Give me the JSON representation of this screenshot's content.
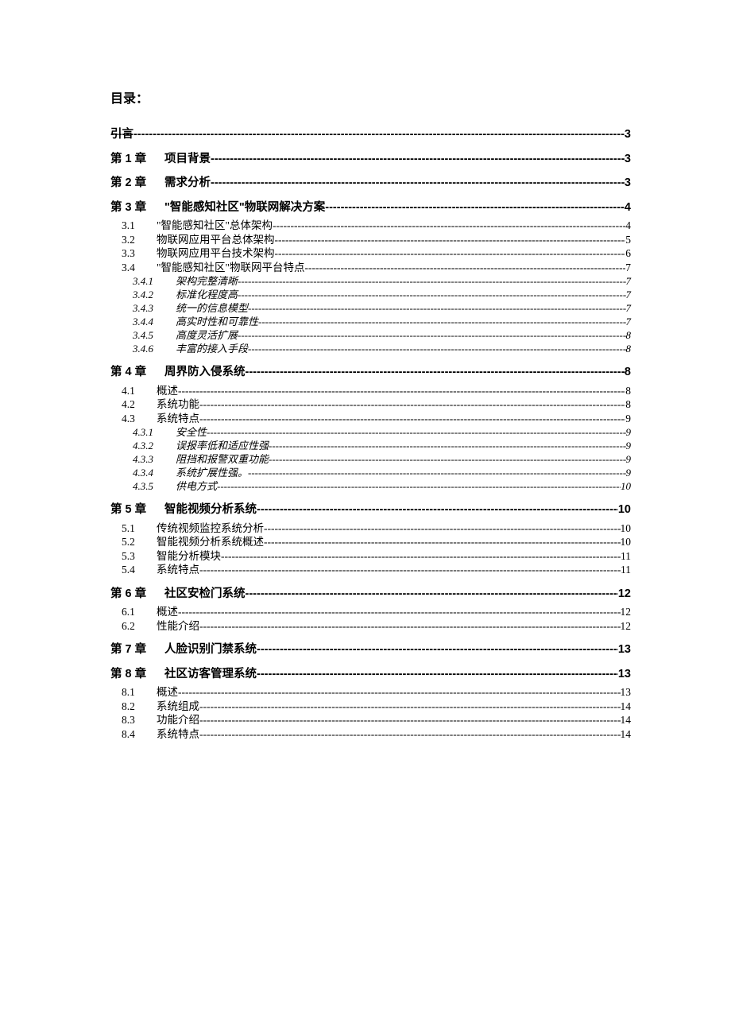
{
  "title": "目录：",
  "dots": "-----------------------------------------------------------------------------------------------------------------------------------------------------------------------------",
  "entries": [
    {
      "level": 1,
      "label": "引言",
      "text": "",
      "page": "3",
      "noLabel": true
    },
    {
      "level": 1,
      "label": "第 1 章",
      "text": "项目背景 ",
      "page": "3"
    },
    {
      "level": 1,
      "label": "第 2 章",
      "text": "需求分析 ",
      "page": "3"
    },
    {
      "level": 1,
      "label": "第 3 章",
      "text": "\"智能感知社区\"物联网解决方案",
      "page": "4"
    },
    {
      "level": 2,
      "label": "3.1",
      "text": "\"智能感知社区\"总体架构 ",
      "page": "4"
    },
    {
      "level": 2,
      "label": "3.2",
      "text": "物联网应用平台总体架构 ",
      "page": "5"
    },
    {
      "level": 2,
      "label": "3.3",
      "text": "物联网应用平台技术架构 ",
      "page": "6"
    },
    {
      "level": 2,
      "label": "3.4",
      "text": "\"智能感知社区\"物联网平台特点 ",
      "page": "7"
    },
    {
      "level": 3,
      "label": "3.4.1",
      "text": "架构完整清晰",
      "page": "7"
    },
    {
      "level": 3,
      "label": "3.4.2",
      "text": "标准化程度高",
      "page": "7"
    },
    {
      "level": 3,
      "label": "3.4.3",
      "text": "统一的信息模型",
      "page": "7"
    },
    {
      "level": 3,
      "label": "3.4.4",
      "text": "高实时性和可靠性",
      "page": "7"
    },
    {
      "level": 3,
      "label": "3.4.5",
      "text": "高度灵活扩展",
      "page": "8"
    },
    {
      "level": 3,
      "label": "3.4.6",
      "text": "丰富的接入手段",
      "page": "8"
    },
    {
      "level": 1,
      "label": "第 4 章",
      "text": "周界防入侵系统 ",
      "page": "8"
    },
    {
      "level": 2,
      "label": "4.1",
      "text": "概述 ",
      "page": "8"
    },
    {
      "level": 2,
      "label": "4.2",
      "text": "系统功能 ",
      "page": "8"
    },
    {
      "level": 2,
      "label": "4.3",
      "text": "系统特点 ",
      "page": "9"
    },
    {
      "level": 3,
      "label": "4.3.1",
      "text": "安全性",
      "page": "9"
    },
    {
      "level": 3,
      "label": "4.3.2",
      "text": "误报率低和适应性强",
      "page": "9"
    },
    {
      "level": 3,
      "label": "4.3.3",
      "text": "阻挡和报警双重功能",
      "page": "9"
    },
    {
      "level": 3,
      "label": "4.3.4",
      "text": "系统扩展性强。",
      "page": "9"
    },
    {
      "level": 3,
      "label": "4.3.5",
      "text": "供电方式 ",
      "page": "10"
    },
    {
      "level": 1,
      "label": "第 5 章",
      "text": "智能视频分析系统 ",
      "page": "10"
    },
    {
      "level": 2,
      "label": "5.1",
      "text": "传统视频监控系统分析",
      "page": "10"
    },
    {
      "level": 2,
      "label": "5.2",
      "text": "智能视频分析系统概述",
      "page": "10"
    },
    {
      "level": 2,
      "label": "5.3",
      "text": "智能分析模块",
      "page": "11"
    },
    {
      "level": 2,
      "label": "5.4",
      "text": "系统特点",
      "page": "11"
    },
    {
      "level": 1,
      "label": "第 6 章",
      "text": "社区安检门系统 ",
      "page": "12"
    },
    {
      "level": 2,
      "label": "6.1",
      "text": "概述",
      "page": "12"
    },
    {
      "level": 2,
      "label": "6.2",
      "text": "性能介绍",
      "page": "12"
    },
    {
      "level": 1,
      "label": "第 7 章",
      "text": "人脸识别门禁系统 ",
      "page": "13"
    },
    {
      "level": 1,
      "label": "第 8 章",
      "text": "社区访客管理系统 ",
      "page": "13"
    },
    {
      "level": 2,
      "label": "8.1",
      "text": "概述",
      "page": "13"
    },
    {
      "level": 2,
      "label": "8.2",
      "text": "系统组成",
      "page": "14"
    },
    {
      "level": 2,
      "label": "8.3",
      "text": "功能介绍",
      "page": "14"
    },
    {
      "level": 2,
      "label": "8.4",
      "text": "系统特点",
      "page": "14"
    }
  ]
}
